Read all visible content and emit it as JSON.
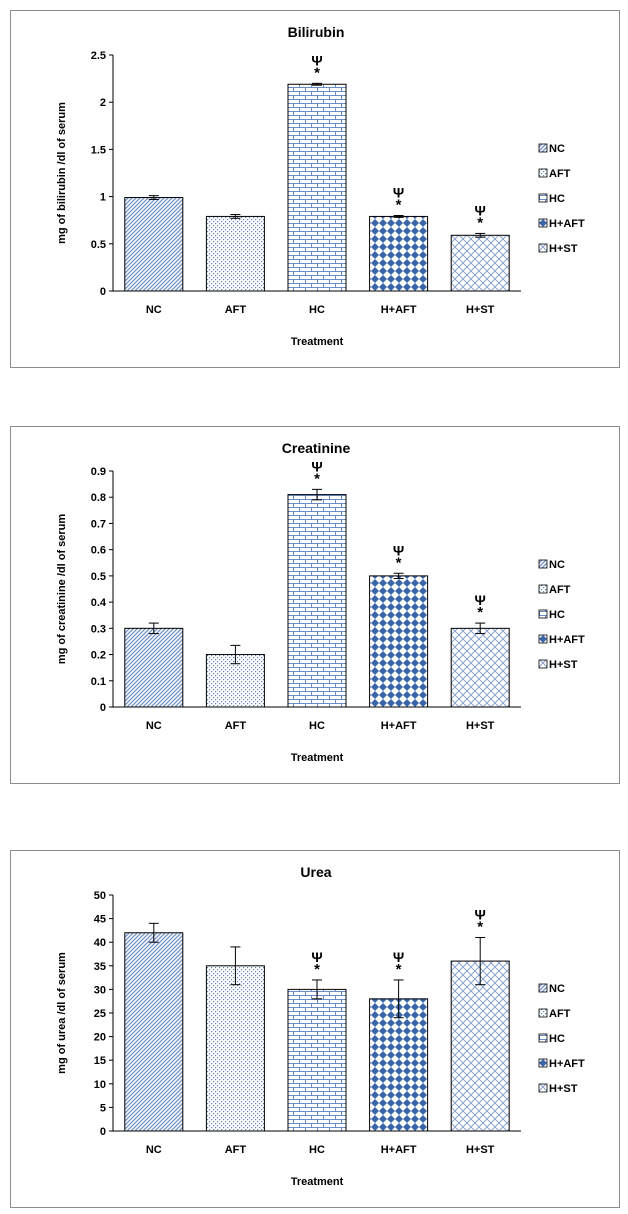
{
  "colors": {
    "NC": "#6f8fc6",
    "AFT": "#5f80b8",
    "HC": "#6a8cc8",
    "H+AFT": "#3b66a8",
    "H+ST": "#7d9acb",
    "axis": "#000000",
    "border": "#8c8c8c"
  },
  "chart_data": [
    {
      "type": "bar",
      "title": "Bilirubin",
      "xlabel": "Treatment",
      "ylabel": "mg of bilirubin /dl of serum",
      "categories": [
        "NC",
        "AFT",
        "HC",
        "H+AFT",
        "H+ST"
      ],
      "values": [
        0.99,
        0.79,
        2.19,
        0.79,
        0.59
      ],
      "errors": [
        0.02,
        0.02,
        0.01,
        0.01,
        0.02
      ],
      "yticks": [
        "0",
        "0.5",
        "1",
        "1.5",
        "2",
        "2.5"
      ],
      "ylim": [
        0,
        2.5
      ],
      "annotations": [
        {
          "category": "HC",
          "labels": [
            "Ψ",
            "*"
          ]
        },
        {
          "category": "H+AFT",
          "labels": [
            "Ψ",
            "*"
          ]
        },
        {
          "category": "H+ST",
          "labels": [
            "Ψ",
            "*"
          ]
        }
      ],
      "legend": {
        "position": "right",
        "entries": [
          "NC",
          "AFT",
          "HC",
          "H+AFT",
          "H+ST"
        ]
      },
      "grid": false
    },
    {
      "type": "bar",
      "title": "Creatinine",
      "xlabel": "Treatment",
      "ylabel": "mg of creatinine /dl of serum",
      "categories": [
        "NC",
        "AFT",
        "HC",
        "H+AFT",
        "H+ST"
      ],
      "values": [
        0.3,
        0.2,
        0.81,
        0.5,
        0.3
      ],
      "errors": [
        0.02,
        0.035,
        0.02,
        0.01,
        0.02
      ],
      "yticks": [
        "0",
        "0.1",
        "0.2",
        "0.3",
        "0.4",
        "0.5",
        "0.6",
        "0.7",
        "0.8",
        "0.9"
      ],
      "ylim": [
        0,
        0.9
      ],
      "annotations": [
        {
          "category": "HC",
          "labels": [
            "Ψ",
            "*"
          ]
        },
        {
          "category": "H+AFT",
          "labels": [
            "Ψ",
            "*"
          ]
        },
        {
          "category": "H+ST",
          "labels": [
            "Ψ",
            "*"
          ]
        }
      ],
      "legend": {
        "position": "right",
        "entries": [
          "NC",
          "AFT",
          "HC",
          "H+AFT",
          "H+ST"
        ]
      },
      "grid": false
    },
    {
      "type": "bar",
      "title": "Urea",
      "xlabel": "Treatment",
      "ylabel": "mg of urea /dl of serum",
      "categories": [
        "NC",
        "AFT",
        "HC",
        "H+AFT",
        "H+ST"
      ],
      "values": [
        42,
        35,
        30,
        28,
        36
      ],
      "errors": [
        2,
        4,
        2,
        4,
        5
      ],
      "yticks": [
        "0",
        "5",
        "10",
        "15",
        "20",
        "25",
        "30",
        "35",
        "40",
        "45",
        "50"
      ],
      "ylim": [
        0,
        50
      ],
      "annotations": [
        {
          "category": "HC",
          "labels": [
            "Ψ",
            "*"
          ]
        },
        {
          "category": "H+AFT",
          "labels": [
            "Ψ",
            "*"
          ]
        },
        {
          "category": "H+ST",
          "labels": [
            "Ψ",
            "*"
          ]
        }
      ],
      "legend": {
        "position": "right",
        "entries": [
          "NC",
          "AFT",
          "HC",
          "H+AFT",
          "H+ST"
        ]
      },
      "grid": false
    }
  ]
}
